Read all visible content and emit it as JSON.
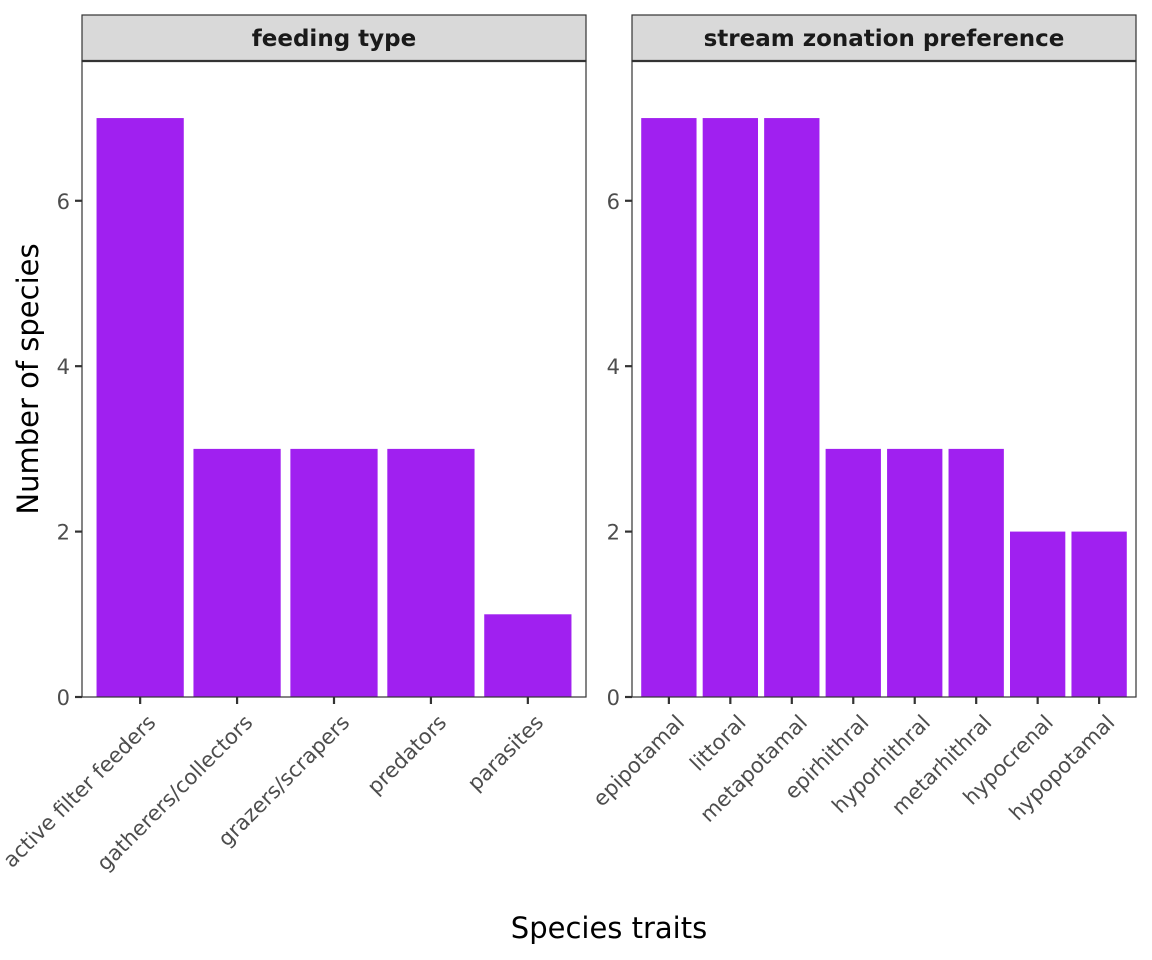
{
  "chart_data": [
    {
      "type": "bar",
      "panel_title": "feeding type",
      "categories": [
        "active filter feeders",
        "gatherers/collectors",
        "grazers/scrapers",
        "predators",
        "parasites"
      ],
      "values": [
        7,
        3,
        3,
        3,
        1
      ],
      "ylim": [
        0,
        7.69
      ],
      "yticks": [
        0,
        2,
        4,
        6
      ]
    },
    {
      "type": "bar",
      "panel_title": "stream zonation preference",
      "categories": [
        "epipotamal",
        "littoral",
        "metapotamal",
        "epirhithral",
        "hyporhithral",
        "metarhithral",
        "hypocrenal",
        "hypopotamal"
      ],
      "values": [
        7,
        7,
        7,
        3,
        3,
        3,
        2,
        2
      ],
      "ylim": [
        0,
        7.69
      ],
      "yticks": [
        0,
        2,
        4,
        6
      ]
    }
  ],
  "shared": {
    "xlabel": "Species traits",
    "ylabel": "Number of species",
    "bar_color": "#A020F0",
    "strip_fill": "#D9D9D9",
    "panel_border": "#333333",
    "grid": false,
    "legend": "none"
  }
}
